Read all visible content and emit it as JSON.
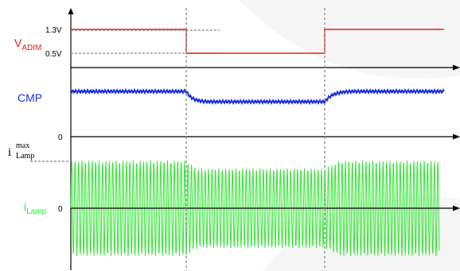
{
  "labels": {
    "vadim_main": "V",
    "vadim_sub": "ADIM",
    "cmp": "CMP",
    "ilamp_max_main": "i",
    "ilamp_max_sup": "max",
    "ilamp_max_sub": "Lamp",
    "ilamp_main": "i",
    "ilamp_sub": "Lamp"
  },
  "ticks": {
    "v_high": "1.3V",
    "v_low": "0.5V",
    "cmp_zero": "0",
    "ilamp_zero": "0"
  },
  "colors": {
    "vadim": "#e0221b",
    "cmp": "#1b2fe0",
    "ilamp": "#2ee62e",
    "axis": "#000000",
    "guide": "#999999",
    "watermark": "#f2f2f2"
  }
}
